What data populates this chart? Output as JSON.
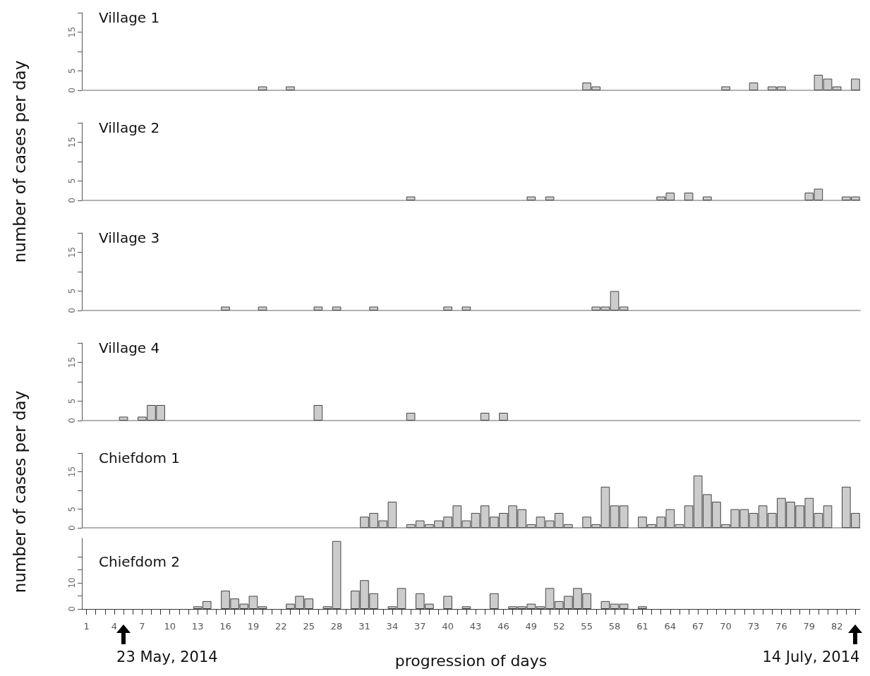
{
  "chart_data": [
    {
      "type": "bar",
      "title": "Village 1",
      "color": "#cccccc",
      "categories": [
        "1",
        null,
        null,
        "4",
        null,
        null,
        "7",
        null,
        null,
        "10",
        null,
        null,
        "13",
        null,
        null,
        "16",
        null,
        null,
        "19",
        null,
        null,
        "22",
        null,
        null,
        "25",
        null,
        null,
        "28",
        null,
        null,
        "31",
        null,
        null,
        "34",
        null,
        null,
        "37",
        null,
        null,
        "40",
        null,
        null,
        "43",
        null,
        null,
        "46",
        null,
        null,
        "49",
        null,
        null,
        "52",
        null,
        null,
        "55",
        null,
        null,
        "58",
        null,
        null,
        "61",
        null,
        null,
        "64",
        null,
        null,
        "67",
        null,
        null,
        "70",
        null,
        null,
        "73",
        null,
        null,
        "76",
        null,
        null,
        "79",
        null,
        null,
        "82",
        null,
        null
      ],
      "values": [
        0,
        0,
        0,
        0,
        0,
        0,
        0,
        0,
        0,
        0,
        0,
        0,
        0,
        0,
        0,
        0,
        0,
        0,
        0,
        1,
        0,
        0,
        1,
        0,
        0,
        0,
        0,
        0,
        0,
        0,
        0,
        0,
        0,
        0,
        0,
        0,
        0,
        0,
        0,
        0,
        0,
        0,
        0,
        0,
        0,
        0,
        0,
        0,
        0,
        0,
        0,
        0,
        0,
        0,
        2,
        1,
        0,
        0,
        0,
        0,
        0,
        0,
        0,
        0,
        0,
        0,
        0,
        0,
        0,
        1,
        0,
        0,
        2,
        0,
        1,
        1,
        0,
        0,
        0,
        4,
        3,
        1,
        0,
        3
      ],
      "ylim": [
        0,
        20
      ],
      "yticks": [
        0,
        5,
        {
          "value": 10,
          "label": null
        },
        15,
        {
          "value": 20,
          "label": null
        }
      ],
      "tick_labels": "y"
    },
    {
      "type": "bar",
      "title": "Village 2",
      "ylabel": "number of cases per day",
      "color": "#cccccc",
      "categories": [
        "1",
        null,
        null,
        "4",
        null,
        null,
        "7",
        null,
        null,
        "10",
        null,
        null,
        "13",
        null,
        null,
        "16",
        null,
        null,
        "19",
        null,
        null,
        "22",
        null,
        null,
        "25",
        null,
        null,
        "28",
        null,
        null,
        "31",
        null,
        null,
        "34",
        null,
        null,
        "37",
        null,
        null,
        "40",
        null,
        null,
        "43",
        null,
        null,
        "46",
        null,
        null,
        "49",
        null,
        null,
        "52",
        null,
        null,
        "55",
        null,
        null,
        "58",
        null,
        null,
        "61",
        null,
        null,
        "64",
        null,
        null,
        "67",
        null,
        null,
        "70",
        null,
        null,
        "73",
        null,
        null,
        "76",
        null,
        null,
        "79",
        null,
        null,
        "82",
        null,
        null
      ],
      "values": [
        0,
        0,
        0,
        0,
        0,
        0,
        0,
        0,
        0,
        0,
        0,
        0,
        0,
        0,
        0,
        0,
        0,
        0,
        0,
        0,
        0,
        0,
        0,
        0,
        0,
        0,
        0,
        0,
        0,
        0,
        0,
        0,
        0,
        0,
        0,
        1,
        0,
        0,
        0,
        0,
        0,
        0,
        0,
        0,
        0,
        0,
        0,
        0,
        1,
        0,
        1,
        0,
        0,
        0,
        0,
        0,
        0,
        0,
        0,
        0,
        0,
        0,
        1,
        2,
        0,
        2,
        0,
        1,
        0,
        0,
        0,
        0,
        0,
        0,
        0,
        0,
        0,
        0,
        2,
        3,
        0,
        0,
        1,
        1
      ],
      "ylim": [
        0,
        20
      ],
      "yticks": [
        0,
        5,
        {
          "value": 10,
          "label": null
        },
        15,
        {
          "value": 20,
          "label": null
        }
      ],
      "tick_labels": "y"
    },
    {
      "type": "bar",
      "title": "Village 3",
      "color": "#cccccc",
      "categories": [
        "1",
        null,
        null,
        "4",
        null,
        null,
        "7",
        null,
        null,
        "10",
        null,
        null,
        "13",
        null,
        null,
        "16",
        null,
        null,
        "19",
        null,
        null,
        "22",
        null,
        null,
        "25",
        null,
        null,
        "28",
        null,
        null,
        "31",
        null,
        null,
        "34",
        null,
        null,
        "37",
        null,
        null,
        "40",
        null,
        null,
        "43",
        null,
        null,
        "46",
        null,
        null,
        "49",
        null,
        null,
        "52",
        null,
        null,
        "55",
        null,
        null,
        "58",
        null,
        null,
        "61",
        null,
        null,
        "64",
        null,
        null,
        "67",
        null,
        null,
        "70",
        null,
        null,
        "73",
        null,
        null,
        "76",
        null,
        null,
        "79",
        null,
        null,
        "82",
        null,
        null
      ],
      "values": [
        0,
        0,
        0,
        0,
        0,
        0,
        0,
        0,
        0,
        0,
        0,
        0,
        0,
        0,
        0,
        1,
        0,
        0,
        0,
        1,
        0,
        0,
        0,
        0,
        0,
        1,
        0,
        1,
        0,
        0,
        0,
        1,
        0,
        0,
        0,
        0,
        0,
        0,
        0,
        1,
        0,
        1,
        0,
        0,
        0,
        0,
        0,
        0,
        0,
        0,
        0,
        0,
        0,
        0,
        0,
        1,
        1,
        5,
        1,
        0,
        0,
        0,
        0,
        0,
        0,
        0,
        0,
        0,
        0,
        0,
        0,
        0,
        0,
        0,
        0,
        0,
        0,
        0,
        0,
        0,
        0,
        0,
        0,
        0
      ],
      "ylim": [
        0,
        20
      ],
      "yticks": [
        0,
        5,
        {
          "value": 10,
          "label": null
        },
        15,
        {
          "value": 20,
          "label": null
        }
      ],
      "tick_labels": "y"
    },
    {
      "type": "bar",
      "title": "Village 4",
      "color": "#cccccc",
      "categories": [
        "1",
        null,
        null,
        "4",
        null,
        null,
        "7",
        null,
        null,
        "10",
        null,
        null,
        "13",
        null,
        null,
        "16",
        null,
        null,
        "19",
        null,
        null,
        "22",
        null,
        null,
        "25",
        null,
        null,
        "28",
        null,
        null,
        "31",
        null,
        null,
        "34",
        null,
        null,
        "37",
        null,
        null,
        "40",
        null,
        null,
        "43",
        null,
        null,
        "46",
        null,
        null,
        "49",
        null,
        null,
        "52",
        null,
        null,
        "55",
        null,
        null,
        "58",
        null,
        null,
        "61",
        null,
        null,
        "64",
        null,
        null,
        "67",
        null,
        null,
        "70",
        null,
        null,
        "73",
        null,
        null,
        "76",
        null,
        null,
        "79",
        null,
        null,
        "82",
        null,
        null
      ],
      "values": [
        0,
        0,
        0,
        0,
        1,
        0,
        1,
        4,
        4,
        0,
        0,
        0,
        0,
        0,
        0,
        0,
        0,
        0,
        0,
        0,
        0,
        0,
        0,
        0,
        0,
        4,
        0,
        0,
        0,
        0,
        0,
        0,
        0,
        0,
        0,
        2,
        0,
        0,
        0,
        0,
        0,
        0,
        0,
        2,
        0,
        2,
        0,
        0,
        0,
        0,
        0,
        0,
        0,
        0,
        0,
        0,
        0,
        0,
        0,
        0,
        0,
        0,
        0,
        0,
        0,
        0,
        0,
        0,
        0,
        0,
        0,
        0,
        0,
        0,
        0,
        0,
        0,
        0,
        0,
        0,
        0,
        0,
        0,
        0
      ],
      "ylim": [
        0,
        20
      ],
      "yticks": [
        0,
        5,
        {
          "value": 10,
          "label": null
        },
        15,
        {
          "value": 20,
          "label": null
        }
      ],
      "tick_labels": "y"
    },
    {
      "type": "bar",
      "title": "Chiefdom 1",
      "ylabel": "number of cases per day",
      "color": "#cccccc",
      "categories": [
        "1",
        null,
        null,
        "4",
        null,
        null,
        "7",
        null,
        null,
        "10",
        null,
        null,
        "13",
        null,
        null,
        "16",
        null,
        null,
        "19",
        null,
        null,
        "22",
        null,
        null,
        "25",
        null,
        null,
        "28",
        null,
        null,
        "31",
        null,
        null,
        "34",
        null,
        null,
        "37",
        null,
        null,
        "40",
        null,
        null,
        "43",
        null,
        null,
        "46",
        null,
        null,
        "49",
        null,
        null,
        "52",
        null,
        null,
        "55",
        null,
        null,
        "58",
        null,
        null,
        "61",
        null,
        null,
        "64",
        null,
        null,
        "67",
        null,
        null,
        "70",
        null,
        null,
        "73",
        null,
        null,
        "76",
        null,
        null,
        "79",
        null,
        null,
        "82",
        null,
        null
      ],
      "values": [
        0,
        0,
        0,
        0,
        0,
        0,
        0,
        0,
        0,
        0,
        0,
        0,
        0,
        0,
        0,
        0,
        0,
        0,
        0,
        0,
        0,
        0,
        0,
        0,
        0,
        0,
        0,
        0,
        0,
        0,
        3,
        4,
        2,
        7,
        0,
        1,
        2,
        1,
        2,
        3,
        6,
        2,
        4,
        6,
        3,
        4,
        6,
        5,
        1,
        3,
        2,
        4,
        1,
        0,
        3,
        1,
        11,
        6,
        6,
        0,
        3,
        1,
        3,
        5,
        1,
        6,
        14,
        9,
        7,
        1,
        5,
        5,
        4,
        6,
        4,
        8,
        7,
        6,
        8,
        4,
        6,
        0,
        11,
        4
      ],
      "ylim": [
        0,
        20
      ],
      "yticks": [
        0,
        5,
        {
          "value": 10,
          "label": null
        },
        15,
        {
          "value": 20,
          "label": null
        }
      ],
      "tick_labels": "y"
    },
    {
      "type": "bar",
      "title": "Chiefdom 2",
      "xlabel": "progression of days",
      "annotations": [
        "23 May, 2014",
        "14 July, 2014"
      ],
      "color": "#cccccc",
      "categories": [
        "1",
        null,
        null,
        "4",
        null,
        null,
        "7",
        null,
        null,
        "10",
        null,
        null,
        "13",
        null,
        null,
        "16",
        null,
        null,
        "19",
        null,
        null,
        "22",
        null,
        null,
        "25",
        null,
        null,
        "28",
        null,
        null,
        "31",
        null,
        null,
        "34",
        null,
        null,
        "37",
        null,
        null,
        "40",
        null,
        null,
        "43",
        null,
        null,
        "46",
        null,
        null,
        "49",
        null,
        null,
        "52",
        null,
        null,
        "55",
        null,
        null,
        "58",
        null,
        null,
        "61",
        null,
        null,
        "64",
        null,
        null,
        "67",
        null,
        null,
        "70",
        null,
        null,
        "73",
        null,
        null,
        "76",
        null,
        null,
        "79",
        null,
        null,
        "82",
        null,
        null
      ],
      "values": [
        0,
        0,
        0,
        0,
        0,
        0,
        0,
        0,
        0,
        0,
        0,
        0,
        1,
        3,
        0,
        7,
        4,
        2,
        5,
        1,
        0,
        0,
        2,
        5,
        4,
        0,
        1,
        26,
        0,
        7,
        11,
        6,
        0,
        1,
        8,
        0,
        6,
        2,
        0,
        5,
        0,
        1,
        0,
        0,
        6,
        0,
        1,
        1,
        2,
        1,
        8,
        3,
        5,
        8,
        6,
        0,
        3,
        2,
        2,
        0,
        1,
        0,
        0,
        0,
        0,
        0,
        0,
        0,
        0,
        0,
        0,
        0,
        0,
        0,
        0,
        0,
        0,
        0,
        0,
        0,
        0,
        0,
        0,
        0
      ],
      "ylim": [
        0,
        27
      ],
      "yticks": [
        0,
        {
          "value": 5,
          "label": null
        },
        10,
        {
          "value": 15,
          "label": null
        },
        {
          "value": 20,
          "label": null
        }
      ]
    }
  ]
}
